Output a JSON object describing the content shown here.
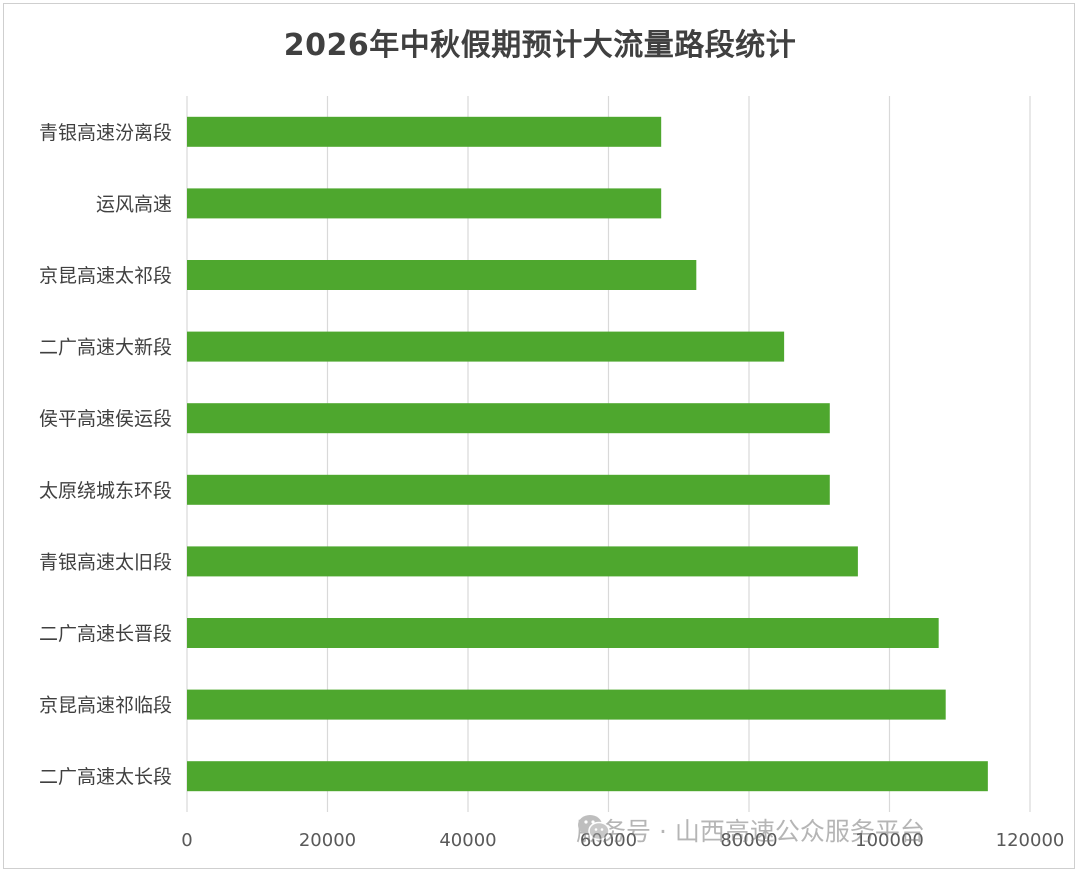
{
  "chart_data": {
    "type": "bar",
    "orientation": "horizontal",
    "title": "2026年中秋假期预计大流量路段统计",
    "categories": [
      "青银高速汾离段",
      "运风高速",
      "京昆高速太祁段",
      "二广高速大新段",
      "侯平高速侯运段",
      "太原绕城东环段",
      "青银高速太旧段",
      "二广高速长晋段",
      "京昆高速祁临段",
      "二广高速太长段"
    ],
    "values": [
      67500,
      67500,
      72500,
      85000,
      91500,
      91500,
      95500,
      107000,
      108000,
      114000
    ],
    "xlim": [
      0,
      120000
    ],
    "xticks": [
      "0",
      "20000",
      "40000",
      "60000",
      "80000",
      "100000",
      "120000"
    ],
    "xlabel": "",
    "ylabel": "",
    "grid": "vertical",
    "legend": "none",
    "bar_color": "#4ea72e",
    "grid_color": "#d9d9d9"
  },
  "watermark": {
    "text": "服务号 · 山西高速公众服务平台",
    "icon": "wechat-icon"
  }
}
